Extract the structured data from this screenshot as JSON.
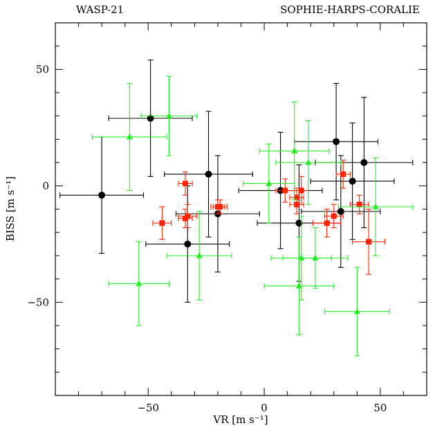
{
  "chart_data": {
    "type": "scatter",
    "title_left": "WASP-21",
    "title_right": "SOPHIE-HARPS-CORALIE",
    "xlabel": "VR  [m s⁻¹]",
    "ylabel": "BISS  [m s⁻¹]",
    "xlim": [
      -90,
      70
    ],
    "ylim": [
      -90,
      70
    ],
    "x_ticks": [
      -50,
      0,
      50
    ],
    "y_ticks": [
      -50,
      0,
      50
    ],
    "grid": false,
    "series": [
      {
        "marker": "circle",
        "color": "#000000",
        "points": [
          {
            "x": -70,
            "y": -4,
            "xerr": 18,
            "yerr": 25
          },
          {
            "x": -49,
            "y": 29,
            "xerr": 18,
            "yerr": 25
          },
          {
            "x": -24,
            "y": 5,
            "xerr": 19,
            "yerr": 27
          },
          {
            "x": -33,
            "y": -25,
            "xerr": 18,
            "yerr": 25
          },
          {
            "x": -20,
            "y": -12,
            "xerr": 18,
            "yerr": 25
          },
          {
            "x": 7,
            "y": -2,
            "xerr": 18,
            "yerr": 25
          },
          {
            "x": 15,
            "y": -16,
            "xerr": 18,
            "yerr": 25
          },
          {
            "x": 31,
            "y": 19,
            "xerr": 18,
            "yerr": 25
          },
          {
            "x": 38,
            "y": 2,
            "xerr": 18,
            "yerr": 25
          },
          {
            "x": 43,
            "y": 10,
            "xerr": 21,
            "yerr": 28
          },
          {
            "x": 33,
            "y": -11,
            "xerr": 17,
            "yerr": 24
          }
        ]
      },
      {
        "marker": "square",
        "color": "#ff2200",
        "points": [
          {
            "x": -44,
            "y": -16,
            "xerr": 4,
            "yerr": 7
          },
          {
            "x": -34,
            "y": 1,
            "xerr": 3,
            "yerr": 5
          },
          {
            "x": -33,
            "y": -13,
            "xerr": 4,
            "yerr": 5
          },
          {
            "x": -34,
            "y": -14,
            "xerr": 3,
            "yerr": 4
          },
          {
            "x": -20,
            "y": -9,
            "xerr": 3,
            "yerr": 3
          },
          {
            "x": -19,
            "y": -9,
            "xerr": 3,
            "yerr": 3
          },
          {
            "x": 9,
            "y": -2,
            "xerr": 4,
            "yerr": 5
          },
          {
            "x": 16,
            "y": -2,
            "xerr": 3,
            "yerr": 6
          },
          {
            "x": 14,
            "y": -5,
            "xerr": 3,
            "yerr": 4
          },
          {
            "x": 14,
            "y": -8,
            "xerr": 3,
            "yerr": 4
          },
          {
            "x": 34,
            "y": 5,
            "xerr": 3,
            "yerr": 6
          },
          {
            "x": 27,
            "y": -16,
            "xerr": 6,
            "yerr": 6
          },
          {
            "x": 30,
            "y": -13,
            "xerr": 4,
            "yerr": 5
          },
          {
            "x": 41,
            "y": -8,
            "xerr": 4,
            "yerr": 4
          },
          {
            "x": 45,
            "y": -24,
            "xerr": 7,
            "yerr": 14
          }
        ]
      },
      {
        "marker": "triangle",
        "color": "#22ee22",
        "points": [
          {
            "x": -58,
            "y": 21,
            "xerr": 16,
            "yerr": 23
          },
          {
            "x": -41,
            "y": 30,
            "xerr": 12,
            "yerr": 17
          },
          {
            "x": -54,
            "y": -42,
            "xerr": 13,
            "yerr": 18
          },
          {
            "x": -28,
            "y": -30,
            "xerr": 14,
            "yerr": 19
          },
          {
            "x": 2,
            "y": 1,
            "xerr": 11,
            "yerr": 17
          },
          {
            "x": 13,
            "y": 15,
            "xerr": 15,
            "yerr": 21
          },
          {
            "x": 19,
            "y": 10,
            "xerr": 14,
            "yerr": 18
          },
          {
            "x": 16,
            "y": -31,
            "xerr": 13,
            "yerr": 18
          },
          {
            "x": 22,
            "y": -31,
            "xerr": 14,
            "yerr": 13
          },
          {
            "x": 15,
            "y": -43,
            "xerr": 15,
            "yerr": 21
          },
          {
            "x": 40,
            "y": -54,
            "xerr": 14,
            "yerr": 19
          },
          {
            "x": 48,
            "y": -9,
            "xerr": 16,
            "yerr": 21
          }
        ]
      }
    ]
  }
}
